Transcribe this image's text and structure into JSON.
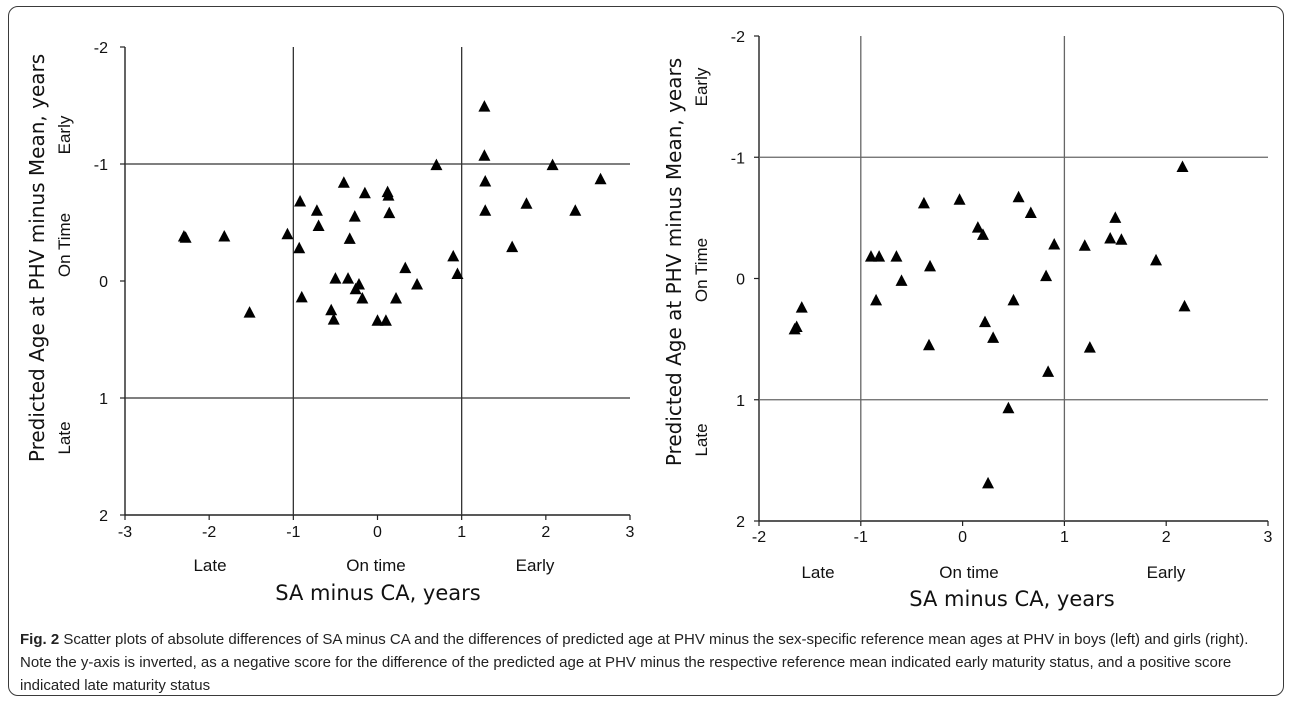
{
  "chart_data": [
    {
      "type": "scatter",
      "xlabel": "SA minus CA, years",
      "ylabel": "Predicted Age at PHV minus Mean, years",
      "xlim": [
        -3,
        3
      ],
      "ylim": [
        2,
        -2
      ],
      "y_inverted": true,
      "x_ticks": [
        "-3",
        "-2",
        "-1",
        "0",
        "1",
        "2",
        "3"
      ],
      "y_ticks": [
        "-2",
        "-1",
        "0",
        "1",
        "2"
      ],
      "x_category_labels": [
        "Late",
        "On time",
        "Early"
      ],
      "y_category_labels": [
        "Early",
        "On Time",
        "Late"
      ],
      "reference_lines": {
        "x": [
          -1,
          1
        ],
        "y": [
          -1,
          1
        ]
      },
      "marker": "triangle",
      "points": [
        [
          -2.3,
          -0.38
        ],
        [
          -2.28,
          -0.37
        ],
        [
          -1.82,
          -0.38
        ],
        [
          -1.52,
          0.27
        ],
        [
          -1.07,
          -0.4
        ],
        [
          -0.92,
          -0.68
        ],
        [
          -0.93,
          -0.28
        ],
        [
          -0.9,
          0.14
        ],
        [
          -0.72,
          -0.6
        ],
        [
          -0.7,
          -0.47
        ],
        [
          -0.55,
          0.25
        ],
        [
          -0.52,
          0.33
        ],
        [
          -0.5,
          -0.02
        ],
        [
          -0.4,
          -0.84
        ],
        [
          -0.35,
          -0.02
        ],
        [
          -0.33,
          -0.36
        ],
        [
          -0.27,
          -0.55
        ],
        [
          -0.26,
          0.07
        ],
        [
          -0.22,
          0.03
        ],
        [
          -0.15,
          -0.75
        ],
        [
          -0.18,
          0.15
        ],
        [
          0.0,
          0.34
        ],
        [
          0.12,
          -0.76
        ],
        [
          0.13,
          -0.73
        ],
        [
          0.14,
          -0.58
        ],
        [
          0.1,
          0.34
        ],
        [
          0.22,
          0.15
        ],
        [
          0.33,
          -0.11
        ],
        [
          0.47,
          0.03
        ],
        [
          0.7,
          -0.99
        ],
        [
          0.9,
          -0.21
        ],
        [
          0.95,
          -0.06
        ],
        [
          1.27,
          -1.49
        ],
        [
          1.27,
          -1.07
        ],
        [
          1.28,
          -0.85
        ],
        [
          1.28,
          -0.6
        ],
        [
          1.6,
          -0.29
        ],
        [
          1.77,
          -0.66
        ],
        [
          2.08,
          -0.99
        ],
        [
          2.35,
          -0.6
        ],
        [
          2.65,
          -0.87
        ]
      ]
    },
    {
      "type": "scatter",
      "xlabel": "SA minus CA, years",
      "ylabel": "Predicted Age at PHV minus Mean, years",
      "xlim": [
        -2,
        3
      ],
      "ylim": [
        2,
        -2
      ],
      "y_inverted": true,
      "x_ticks": [
        "-2",
        "-1",
        "0",
        "1",
        "2",
        "3"
      ],
      "y_ticks": [
        "-2",
        "-1",
        "0",
        "1",
        "2"
      ],
      "x_category_labels": [
        "Late",
        "On time",
        "Early"
      ],
      "y_category_labels": [
        "Early",
        "On Time",
        "Late"
      ],
      "reference_lines": {
        "x": [
          -1,
          1
        ],
        "y": [
          -1,
          1
        ]
      },
      "marker": "triangle",
      "points": [
        [
          -1.65,
          0.42
        ],
        [
          -1.63,
          0.4
        ],
        [
          -1.58,
          0.24
        ],
        [
          -0.9,
          -0.18
        ],
        [
          -0.82,
          -0.18
        ],
        [
          -0.65,
          -0.18
        ],
        [
          -0.85,
          0.18
        ],
        [
          -0.6,
          0.02
        ],
        [
          -0.38,
          -0.62
        ],
        [
          -0.32,
          -0.1
        ],
        [
          -0.33,
          0.55
        ],
        [
          -0.03,
          -0.65
        ],
        [
          0.15,
          -0.42
        ],
        [
          0.2,
          -0.36
        ],
        [
          0.22,
          0.36
        ],
        [
          0.3,
          0.49
        ],
        [
          0.45,
          1.07
        ],
        [
          0.25,
          1.69
        ],
        [
          0.5,
          0.18
        ],
        [
          0.55,
          -0.67
        ],
        [
          0.67,
          -0.54
        ],
        [
          0.82,
          -0.02
        ],
        [
          0.84,
          0.77
        ],
        [
          0.9,
          -0.28
        ],
        [
          1.2,
          -0.27
        ],
        [
          1.25,
          0.57
        ],
        [
          1.45,
          -0.33
        ],
        [
          1.5,
          -0.5
        ],
        [
          1.56,
          -0.32
        ],
        [
          1.9,
          -0.15
        ],
        [
          2.16,
          -0.92
        ],
        [
          2.18,
          0.23
        ]
      ]
    }
  ],
  "caption": {
    "label": "Fig. 2",
    "text": " Scatter plots of absolute differences of SA minus CA and the differences of predicted age at PHV minus the sex-specific reference mean ages at PHV in boys (left) and girls (right). Note the y-axis is inverted, as a negative score for the difference of the predicted age at PHV minus the respective reference mean indicated early maturity status, and a positive score indicated late maturity status"
  }
}
